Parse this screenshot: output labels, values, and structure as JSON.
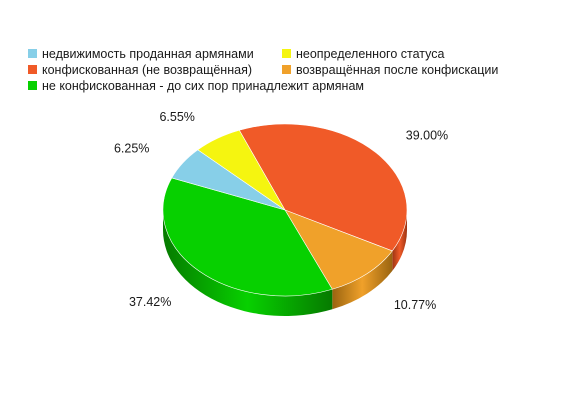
{
  "chart_data": {
    "type": "pie",
    "style": "3d",
    "slices": [
      {
        "label": "конфискованная (не возвращённая)",
        "value": 39.0,
        "value_label": "39.00%",
        "color": "#f05a28",
        "side_color": "#9c3412"
      },
      {
        "label": "возвращённая после конфискации",
        "value": 10.77,
        "value_label": "10.77%",
        "color": "#f0a12a",
        "side_color": "#9a6410"
      },
      {
        "label": "не конфискованная - до сих пор принадлежит армянам",
        "value": 37.42,
        "value_label": "37.42%",
        "color": "#07d000",
        "side_color": "#067a00"
      },
      {
        "label": "недвижимость проданная армянами",
        "value": 6.25,
        "value_label": "6.25%",
        "color": "#87cfe8",
        "side_color": "#4f8aa0"
      },
      {
        "label": "неопределенного статуса",
        "value": 6.55,
        "value_label": "6.55%",
        "color": "#f5f510",
        "side_color": "#a6a60a"
      }
    ],
    "legend_order": [
      3,
      4,
      0,
      1,
      2
    ],
    "legend_position": "top-left",
    "title": ""
  }
}
